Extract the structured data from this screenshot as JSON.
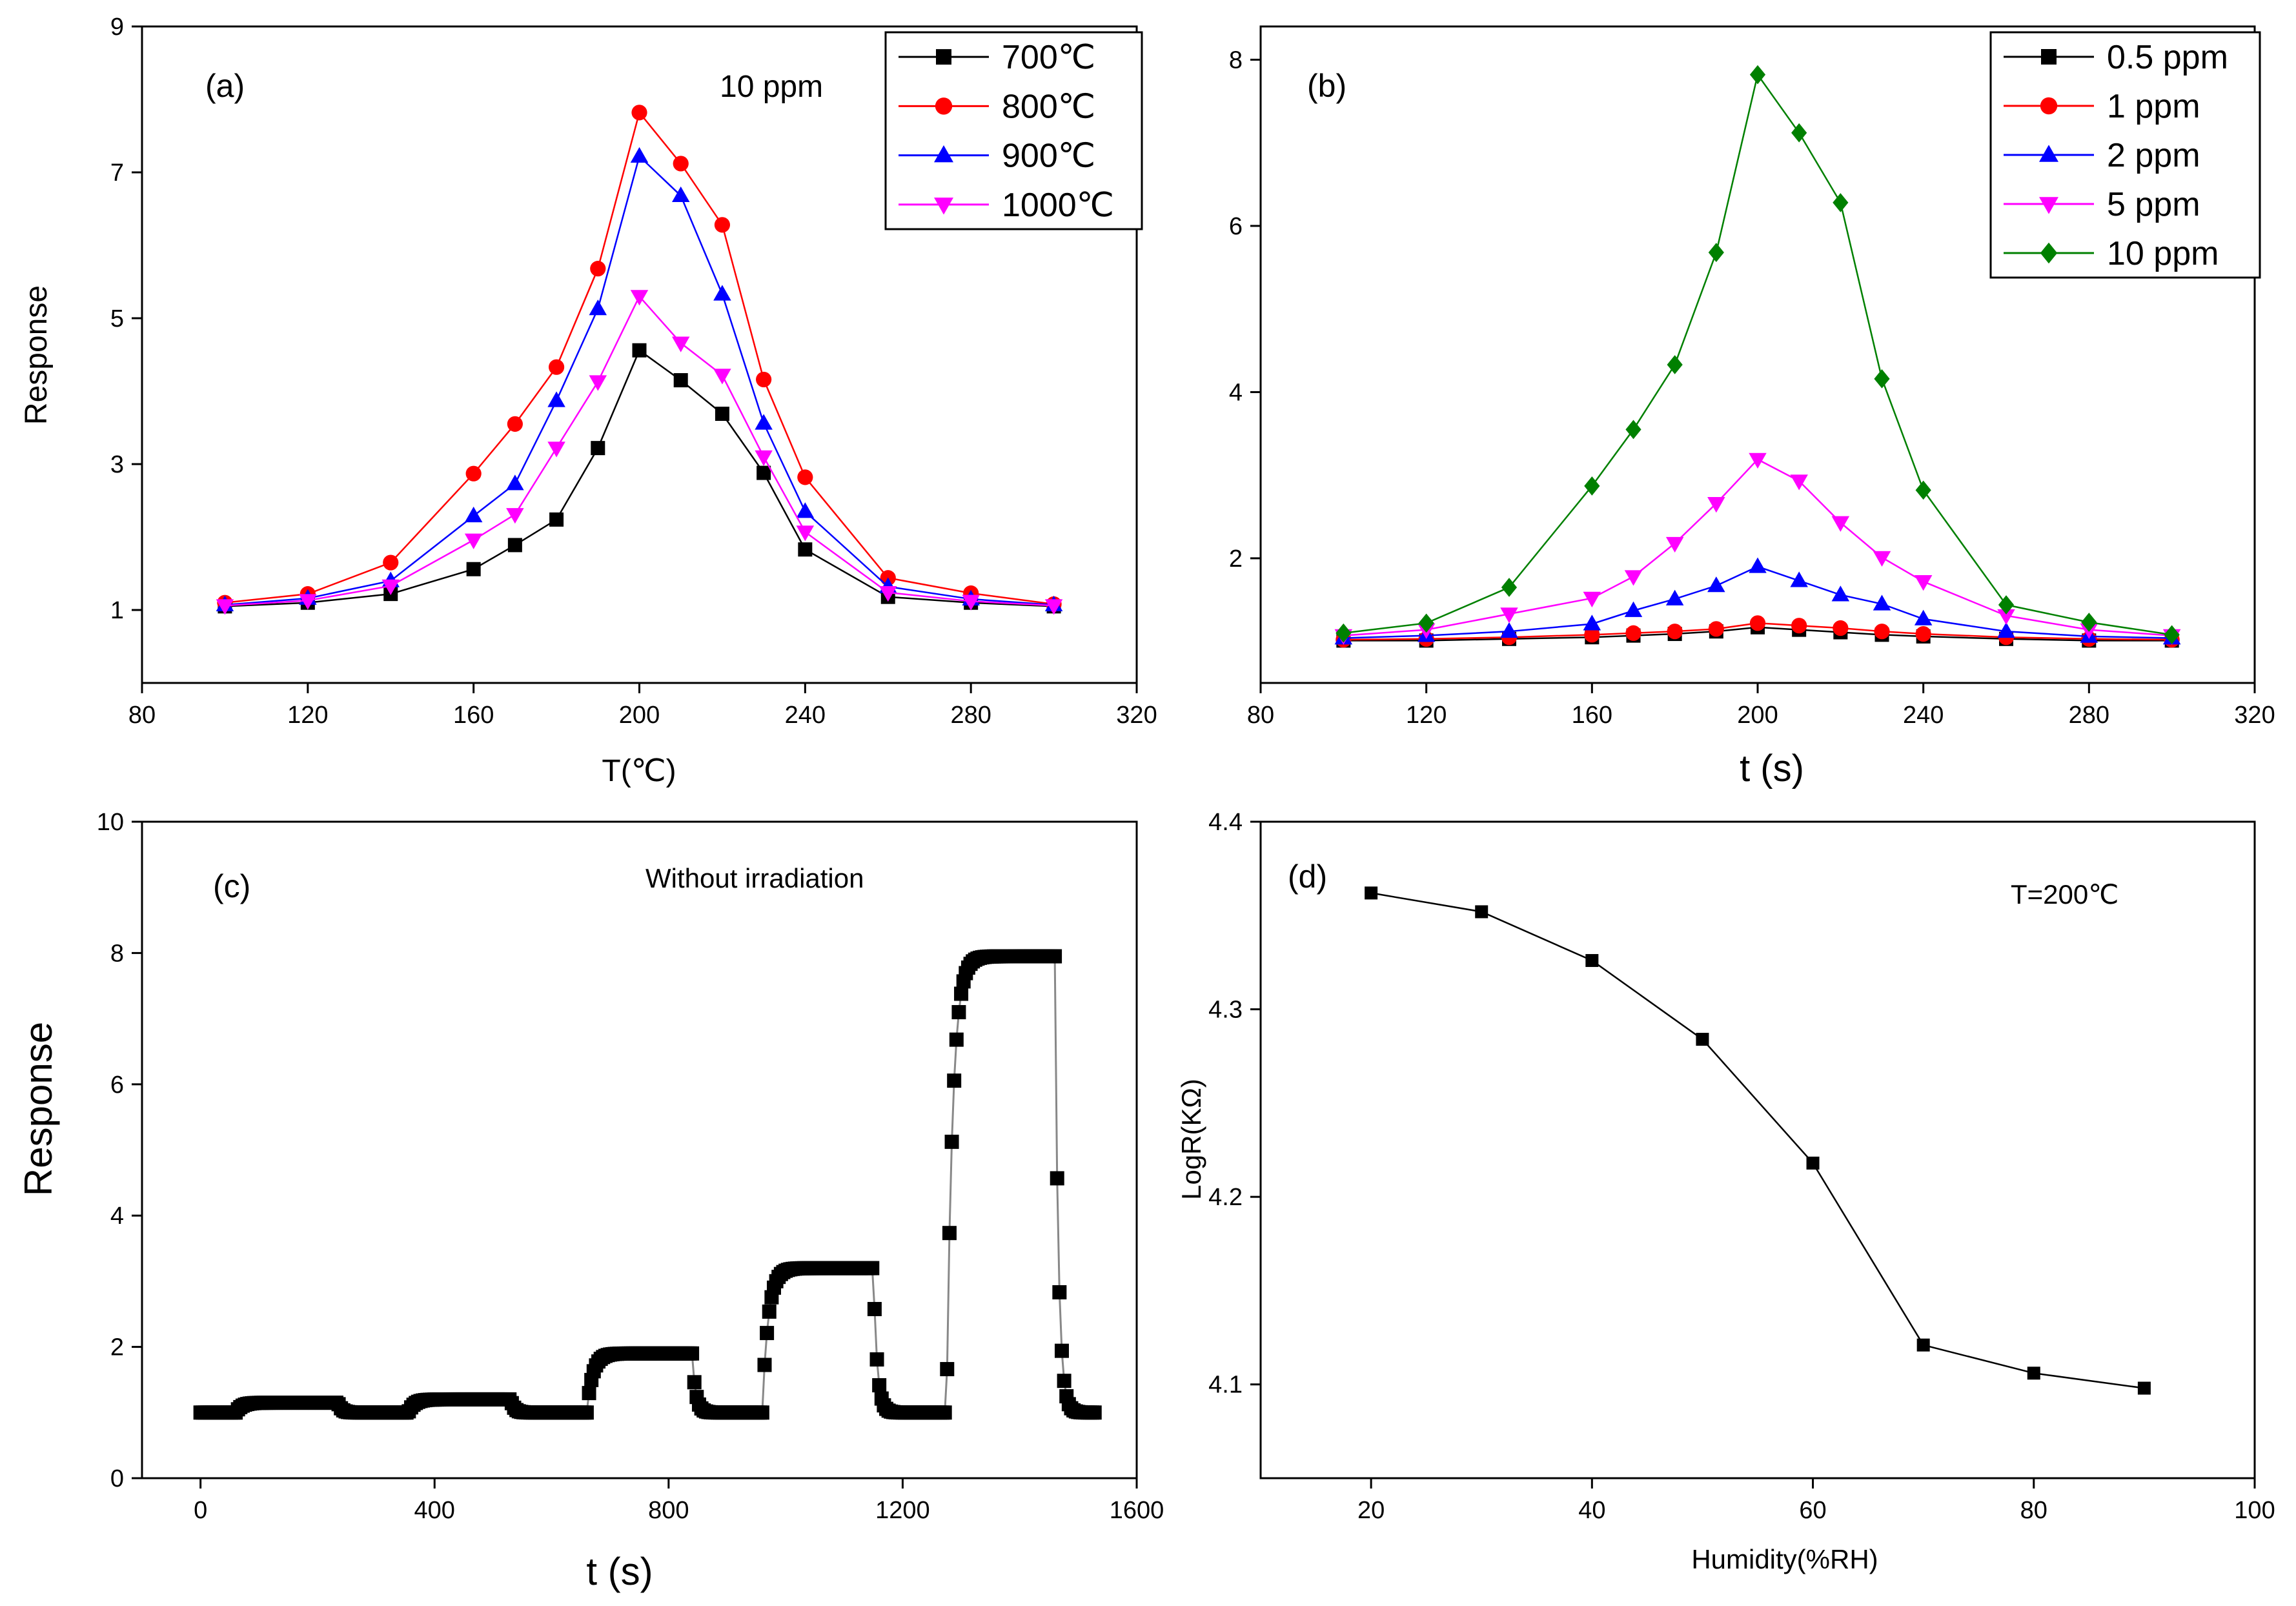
{
  "chart_data": [
    {
      "type": "line",
      "panel_label": "(a)",
      "annotation": "10 ppm",
      "xlabel": "T(℃)",
      "ylabel": "Response",
      "xlim": [
        80,
        320
      ],
      "ylim": [
        0,
        9
      ],
      "xticks": [
        80,
        120,
        160,
        200,
        240,
        280,
        320
      ],
      "yticks": [
        1,
        3,
        5,
        7,
        9
      ],
      "grid": false,
      "legend_position": "top-right",
      "x": [
        100,
        120,
        140,
        160,
        170,
        180,
        190,
        200,
        210,
        220,
        230,
        240,
        260,
        280,
        300
      ],
      "series": [
        {
          "name": "700℃",
          "color": "#000000",
          "marker": "square",
          "values": [
            1.05,
            1.1,
            1.22,
            1.56,
            1.89,
            2.24,
            3.22,
            4.56,
            4.15,
            3.69,
            2.88,
            1.83,
            1.18,
            1.1,
            1.05
          ]
        },
        {
          "name": "800℃",
          "color": "#ff0000",
          "marker": "circle",
          "values": [
            1.1,
            1.22,
            1.65,
            2.87,
            3.55,
            4.33,
            5.68,
            7.82,
            7.12,
            6.28,
            4.16,
            2.82,
            1.44,
            1.23,
            1.08
          ]
        },
        {
          "name": "900℃",
          "color": "#0000ff",
          "marker": "triangle-up",
          "values": [
            1.07,
            1.16,
            1.4,
            2.29,
            2.73,
            3.87,
            5.13,
            7.22,
            6.68,
            5.33,
            3.56,
            2.35,
            1.32,
            1.15,
            1.07
          ]
        },
        {
          "name": "1000℃",
          "color": "#ff00ff",
          "marker": "triangle-down",
          "values": [
            1.06,
            1.13,
            1.33,
            1.96,
            2.31,
            3.22,
            4.13,
            5.3,
            4.66,
            4.22,
            3.1,
            2.07,
            1.24,
            1.12,
            1.06
          ]
        }
      ]
    },
    {
      "type": "line",
      "panel_label": "(b)",
      "xlabel": "t (s)",
      "ylabel": "",
      "xlim": [
        80,
        320
      ],
      "ylim": [
        0.5,
        8.4
      ],
      "xticks": [
        80,
        120,
        160,
        200,
        240,
        280,
        320
      ],
      "yticks": [
        2,
        4,
        6,
        8
      ],
      "grid": false,
      "legend_position": "top-right",
      "x": [
        100,
        120,
        140,
        160,
        170,
        180,
        190,
        200,
        210,
        220,
        230,
        240,
        260,
        280,
        300
      ],
      "series": [
        {
          "name": "0.5 ppm",
          "color": "#000000",
          "marker": "square",
          "values": [
            1.01,
            1.01,
            1.03,
            1.05,
            1.07,
            1.09,
            1.12,
            1.17,
            1.14,
            1.11,
            1.08,
            1.06,
            1.03,
            1.01,
            1.01
          ]
        },
        {
          "name": "1 ppm",
          "color": "#ff0000",
          "marker": "circle",
          "values": [
            1.02,
            1.03,
            1.05,
            1.08,
            1.1,
            1.12,
            1.15,
            1.22,
            1.19,
            1.16,
            1.12,
            1.09,
            1.05,
            1.03,
            1.02
          ]
        },
        {
          "name": "2 ppm",
          "color": "#0000ff",
          "marker": "triangle-up",
          "values": [
            1.04,
            1.07,
            1.12,
            1.21,
            1.37,
            1.51,
            1.67,
            1.9,
            1.73,
            1.56,
            1.45,
            1.27,
            1.12,
            1.06,
            1.04
          ]
        },
        {
          "name": "5 ppm",
          "color": "#ff00ff",
          "marker": "triangle-down",
          "values": [
            1.07,
            1.14,
            1.33,
            1.52,
            1.78,
            2.18,
            2.66,
            3.19,
            2.93,
            2.43,
            2.01,
            1.72,
            1.31,
            1.14,
            1.07
          ]
        },
        {
          "name": "10 ppm",
          "color": "#008000",
          "marker": "diamond",
          "values": [
            1.1,
            1.22,
            1.65,
            2.87,
            3.55,
            4.33,
            5.68,
            7.82,
            7.12,
            6.28,
            4.16,
            2.82,
            1.44,
            1.23,
            1.08
          ]
        }
      ]
    },
    {
      "type": "line",
      "panel_label": "(c)",
      "annotation": "Without irradiation",
      "xlabel": "t (s)",
      "ylabel": "Response",
      "xlim": [
        -100,
        1600
      ],
      "ylim": [
        0,
        10
      ],
      "xticks": [
        0,
        400,
        800,
        1200,
        1600
      ],
      "yticks": [
        0,
        2,
        4,
        6,
        8,
        10
      ],
      "grid": false,
      "series": [
        {
          "color": "#000000",
          "marker": "square",
          "cycles": [
            {
              "baseline_start": 0,
              "on": 60,
              "off": 235,
              "baseline_value": 1.0,
              "peak": 1.15
            },
            {
              "on": 355,
              "off": 530,
              "baseline_value": 1.0,
              "peak": 1.2
            },
            {
              "on": 660,
              "off": 840,
              "baseline_value": 1.0,
              "peak": 1.9
            },
            {
              "on": 960,
              "off": 1150,
              "baseline_value": 1.0,
              "peak": 3.2
            },
            {
              "on": 1275,
              "off": 1460,
              "baseline_value": 1.0,
              "peak": 7.95,
              "end": 1530
            }
          ]
        }
      ]
    },
    {
      "type": "line",
      "panel_label": "(d)",
      "annotation": "T=200℃",
      "xlabel": "Humidity(%RH)",
      "ylabel": "LogR(KΩ)",
      "xlim": [
        10,
        100
      ],
      "ylim": [
        4.05,
        4.4
      ],
      "xticks": [
        20,
        40,
        60,
        80,
        100
      ],
      "yticks": [
        4.1,
        4.2,
        4.3,
        4.4
      ],
      "grid": false,
      "x": [
        20,
        30,
        40,
        50,
        60,
        70,
        80,
        90
      ],
      "series": [
        {
          "color": "#000000",
          "marker": "square",
          "values": [
            4.362,
            4.352,
            4.326,
            4.284,
            4.218,
            4.121,
            4.106,
            4.098
          ]
        }
      ]
    }
  ]
}
